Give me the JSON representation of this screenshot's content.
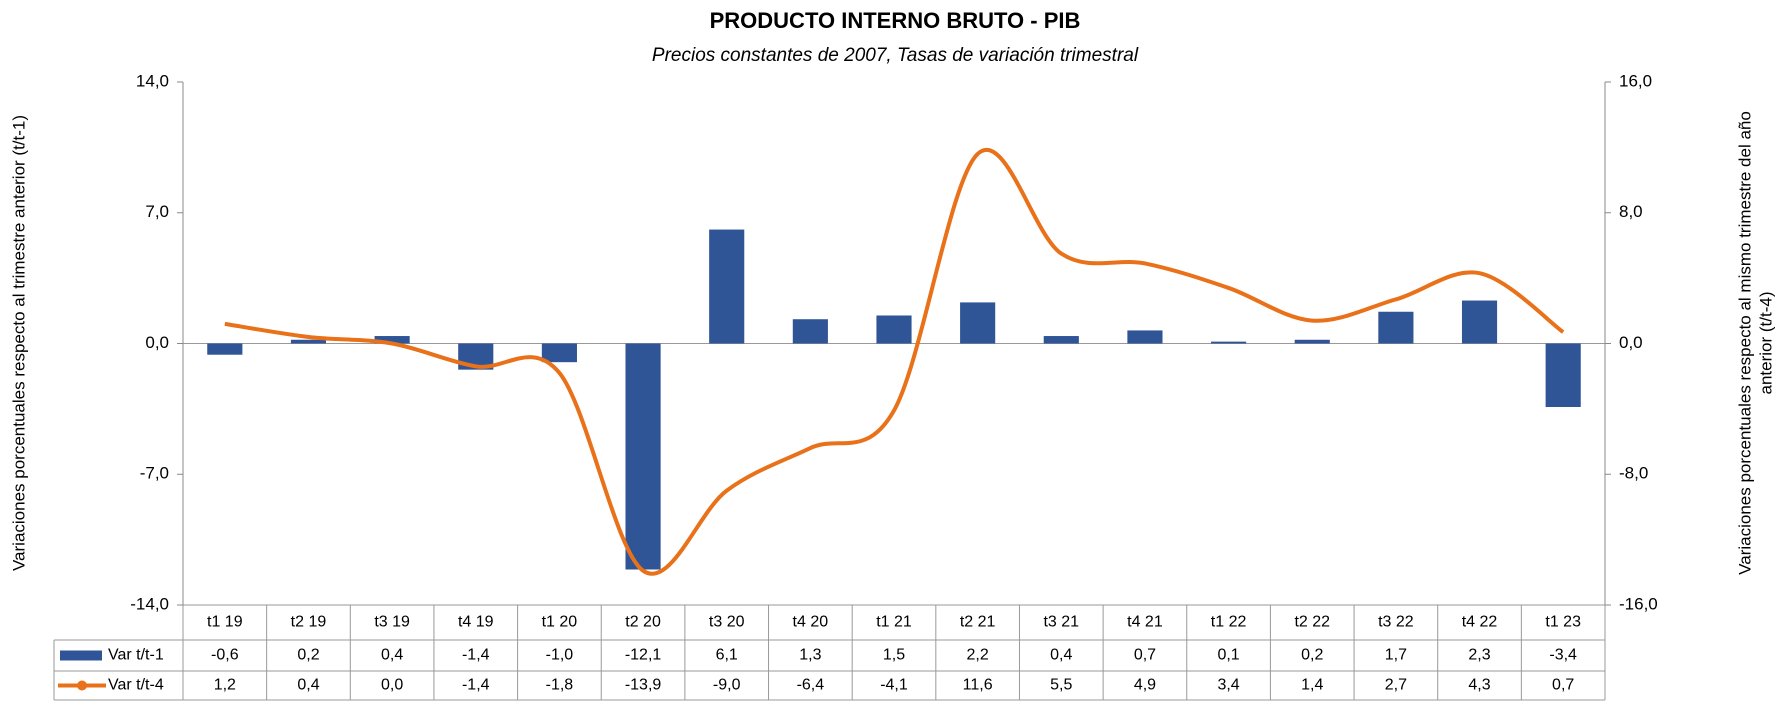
{
  "chart_data": {
    "type": "bar_line",
    "title": "PRODUCTO INTERNO BRUTO - PIB",
    "subtitle": "Precios constantes de 2007, Tasas de variación trimestral",
    "ylabel": "Variaciones porcentuales respecto al trimestre anterior (t/t-1)",
    "y2label": [
      "Variaciones porcentuales respecto al mismo trimestre del año",
      "anterior (t/t-4)"
    ],
    "categories": [
      "t1 19",
      "t2 19",
      "t3 19",
      "t4 19",
      "t1 20",
      "t2 20",
      "t3 20",
      "t4 20",
      "t1 21",
      "t2 21",
      "t3 21",
      "t4 21",
      "t1 22",
      "t2 22",
      "t3 22",
      "t4 22",
      "t1 23"
    ],
    "series": [
      {
        "name": "Var t/t-1",
        "type": "bar",
        "color": "#2f5597",
        "values": [
          -0.6,
          0.2,
          0.4,
          -1.4,
          -1.0,
          -12.1,
          6.1,
          1.3,
          1.5,
          2.2,
          0.4,
          0.7,
          0.1,
          0.2,
          1.7,
          2.3,
          -3.4
        ],
        "value_labels": [
          "-0,6",
          "0,2",
          "0,4",
          "-1,4",
          "-1,0",
          "-12,1",
          "6,1",
          "1,3",
          "1,5",
          "2,2",
          "0,4",
          "0,7",
          "0,1",
          "0,2",
          "1,7",
          "2,3",
          "-3,4"
        ]
      },
      {
        "name": "Var t/t-4",
        "type": "line",
        "axis": "y2",
        "color": "#e8711a",
        "values": [
          1.2,
          0.4,
          0.0,
          -1.4,
          -1.8,
          -13.9,
          -9.0,
          -6.4,
          -4.1,
          11.6,
          5.5,
          4.9,
          3.4,
          1.4,
          2.7,
          4.3,
          0.7
        ],
        "value_labels": [
          "1,2",
          "0,4",
          "0,0",
          "-1,4",
          "-1,8",
          "-13,9",
          "-9,0",
          "-6,4",
          "-4,1",
          "11,6",
          "5,5",
          "4,9",
          "3,4",
          "1,4",
          "2,7",
          "4,3",
          "0,7"
        ]
      }
    ],
    "ylim": [
      -14,
      14
    ],
    "yticks": [
      {
        "value": -14,
        "label": "-14,0"
      },
      {
        "value": -7,
        "label": "-7,0"
      },
      {
        "value": 0,
        "label": "0,0"
      },
      {
        "value": 7,
        "label": "7,0"
      },
      {
        "value": 14,
        "label": "14,0"
      }
    ],
    "y2lim": [
      -16,
      16
    ],
    "y2ticks": [
      {
        "value": -16,
        "label": "-16,0"
      },
      {
        "value": -8,
        "label": "-8,0"
      },
      {
        "value": 0,
        "label": "0,0"
      },
      {
        "value": 8,
        "label": "8,0"
      },
      {
        "value": 16,
        "label": "16,0"
      }
    ]
  }
}
